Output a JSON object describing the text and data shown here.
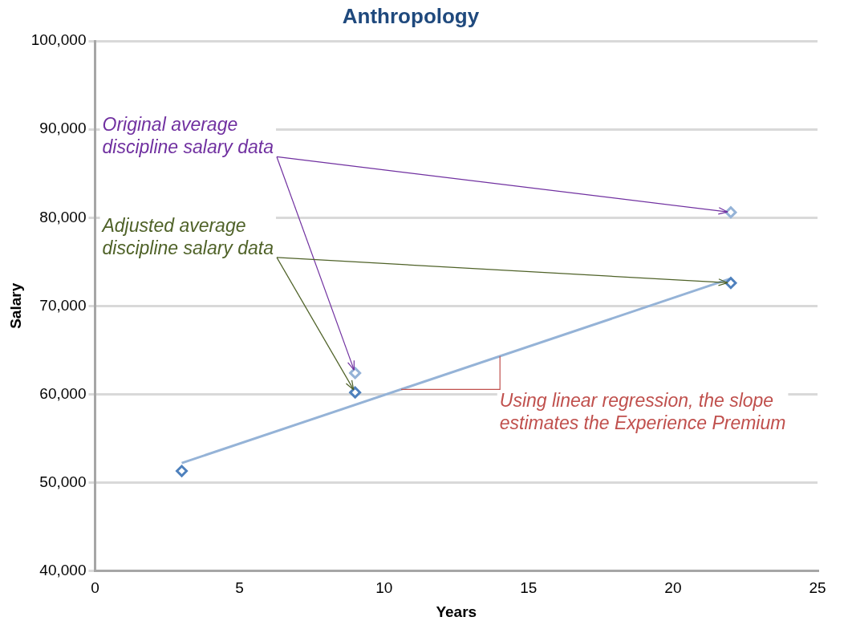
{
  "chart_data": {
    "type": "scatter",
    "title": "Anthropology",
    "xlabel": "Years",
    "ylabel": "Salary",
    "xlim": [
      0,
      25
    ],
    "xticks": [
      0,
      5,
      10,
      15,
      20,
      25
    ],
    "ylim": [
      40000,
      100000
    ],
    "yticks": [
      {
        "value": 40000,
        "label": "40,000"
      },
      {
        "value": 50000,
        "label": "50,000"
      },
      {
        "value": 60000,
        "label": "60,000"
      },
      {
        "value": 70000,
        "label": "70,000"
      },
      {
        "value": 80000,
        "label": "80,000"
      },
      {
        "value": 90000,
        "label": "90,000"
      },
      {
        "value": 100000,
        "label": "100,000"
      }
    ],
    "grid": "y",
    "legend": false,
    "marker": "diamond",
    "series": [
      {
        "color": "#95b3d7",
        "x": [
          9,
          22
        ],
        "values": [
          62400,
          80600
        ]
      },
      {
        "color": "#4f81bd",
        "x": [
          3,
          9,
          22
        ],
        "values": [
          51300,
          60200,
          72600
        ]
      },
      {
        "type": "line",
        "marker": "none",
        "color": "#95b3d7",
        "x": [
          3,
          22
        ],
        "values": [
          52200,
          73100
        ]
      }
    ],
    "annotations": [
      {
        "text": "Original average discipline salary data",
        "x": 22,
        "y": 80600
      },
      {
        "text": "Adjusted average discipline salary data",
        "x": 22,
        "y": 72600
      },
      "Using linear regression, the slope estimates the Experience Premium"
    ]
  }
}
